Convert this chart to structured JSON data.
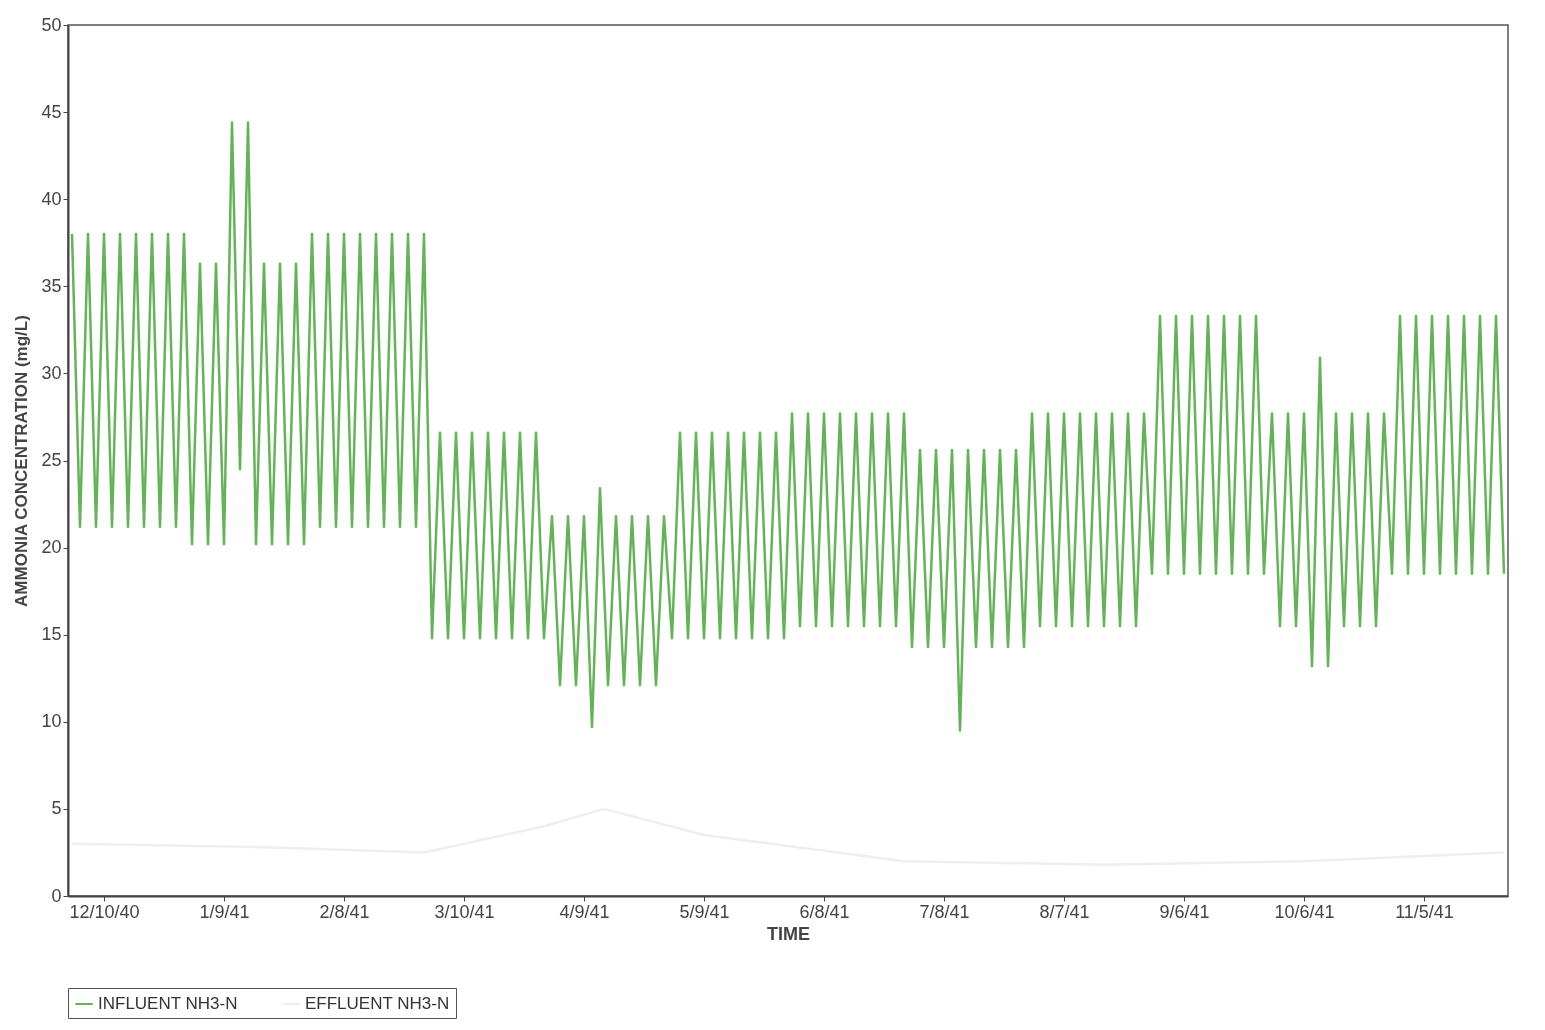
{
  "chart_data": {
    "type": "line",
    "xlabel": "TIME",
    "ylabel": "AMMONIA CONCENTRATION (mg/L)",
    "xlim": [
      "1940-12-01",
      "1941-11-26"
    ],
    "ylim": [
      0,
      50
    ],
    "xticks": [
      {
        "value": "1940-12-10",
        "label": "12/10/40"
      },
      {
        "value": "1941-01-09",
        "label": "1/9/41"
      },
      {
        "value": "1941-02-08",
        "label": "2/8/41"
      },
      {
        "value": "1941-03-10",
        "label": "3/10/41"
      },
      {
        "value": "1941-04-09",
        "label": "4/9/41"
      },
      {
        "value": "1941-05-09",
        "label": "5/9/41"
      },
      {
        "value": "1941-06-08",
        "label": "6/8/41"
      },
      {
        "value": "1941-07-08",
        "label": "7/8/41"
      },
      {
        "value": "1941-08-07",
        "label": "8/7/41"
      },
      {
        "value": "1941-09-06",
        "label": "9/6/41"
      },
      {
        "value": "1941-10-06",
        "label": "10/6/41"
      },
      {
        "value": "1941-11-05",
        "label": "11/5/41"
      }
    ],
    "yticks": [
      0,
      5,
      10,
      15,
      20,
      25,
      30,
      35,
      40,
      45,
      50
    ],
    "grid": false,
    "legend": "bottom",
    "marker": "none",
    "line_style": "solid",
    "series": [
      {
        "name": "INFLUENT NH3-N",
        "color": "#66b25a",
        "x": [
          "1940-12-02",
          "1940-12-04",
          "1940-12-06",
          "1940-12-08",
          "1940-12-10",
          "1940-12-12",
          "1940-12-14",
          "1940-12-16",
          "1940-12-18",
          "1940-12-20",
          "1940-12-22",
          "1940-12-24",
          "1940-12-26",
          "1940-12-28",
          "1940-12-30",
          "1941-01-01",
          "1941-01-03",
          "1941-01-05",
          "1941-01-07",
          "1941-01-09",
          "1941-01-11",
          "1941-01-13",
          "1941-01-15",
          "1941-01-17",
          "1941-01-19",
          "1941-01-21",
          "1941-01-23",
          "1941-01-25",
          "1941-01-27",
          "1941-01-29",
          "1941-01-31",
          "1941-02-02",
          "1941-02-04",
          "1941-02-06",
          "1941-02-08",
          "1941-02-10",
          "1941-02-12",
          "1941-02-14",
          "1941-02-16",
          "1941-02-18",
          "1941-02-20",
          "1941-02-22",
          "1941-02-24",
          "1941-02-26",
          "1941-02-28",
          "1941-03-02",
          "1941-03-04",
          "1941-03-06",
          "1941-03-08",
          "1941-03-10",
          "1941-03-12",
          "1941-03-14",
          "1941-03-16",
          "1941-03-18",
          "1941-03-20",
          "1941-03-22",
          "1941-03-24",
          "1941-03-26",
          "1941-03-28",
          "1941-03-30",
          "1941-04-01",
          "1941-04-03",
          "1941-04-05",
          "1941-04-07",
          "1941-04-09",
          "1941-04-11",
          "1941-04-13",
          "1941-04-15",
          "1941-04-17",
          "1941-04-19",
          "1941-04-21",
          "1941-04-23",
          "1941-04-25",
          "1941-04-27",
          "1941-04-29",
          "1941-05-01",
          "1941-05-03",
          "1941-05-05",
          "1941-05-07",
          "1941-05-09",
          "1941-05-11",
          "1941-05-13",
          "1941-05-15",
          "1941-05-17",
          "1941-05-19",
          "1941-05-21",
          "1941-05-23",
          "1941-05-25",
          "1941-05-27",
          "1941-05-29",
          "1941-05-31",
          "1941-06-02",
          "1941-06-04",
          "1941-06-06",
          "1941-06-08",
          "1941-06-10",
          "1941-06-12",
          "1941-06-14",
          "1941-06-16",
          "1941-06-18",
          "1941-06-20",
          "1941-06-22",
          "1941-06-24",
          "1941-06-26",
          "1941-06-28",
          "1941-06-30",
          "1941-07-02",
          "1941-07-04",
          "1941-07-06",
          "1941-07-08",
          "1941-07-10",
          "1941-07-12",
          "1941-07-14",
          "1941-07-16",
          "1941-07-18",
          "1941-07-20",
          "1941-07-22",
          "1941-07-24",
          "1941-07-26",
          "1941-07-28",
          "1941-07-30",
          "1941-08-01",
          "1941-08-03",
          "1941-08-05",
          "1941-08-07",
          "1941-08-09",
          "1941-08-11",
          "1941-08-13",
          "1941-08-15",
          "1941-08-17",
          "1941-08-19",
          "1941-08-21",
          "1941-08-23",
          "1941-08-25",
          "1941-08-27",
          "1941-08-29",
          "1941-08-31",
          "1941-09-02",
          "1941-09-04",
          "1941-09-06",
          "1941-09-08",
          "1941-09-10",
          "1941-09-12",
          "1941-09-14",
          "1941-09-16",
          "1941-09-18",
          "1941-09-20",
          "1941-09-22",
          "1941-09-24",
          "1941-09-26",
          "1941-09-28",
          "1941-09-30",
          "1941-10-02",
          "1941-10-04",
          "1941-10-06",
          "1941-10-08",
          "1941-10-10",
          "1941-10-12",
          "1941-10-14",
          "1941-10-16",
          "1941-10-18",
          "1941-10-20",
          "1941-10-22",
          "1941-10-24",
          "1941-10-26",
          "1941-10-28",
          "1941-10-30",
          "1941-11-01",
          "1941-11-03",
          "1941-11-05",
          "1941-11-07",
          "1941-11-09",
          "1941-11-11",
          "1941-11-13",
          "1941-11-15",
          "1941-11-17",
          "1941-11-19",
          "1941-11-21",
          "1941-11-23",
          "1941-11-25"
        ],
        "values": [
          38,
          21.2,
          38,
          21.2,
          38,
          21.2,
          38,
          21.2,
          38,
          21.2,
          38,
          21.2,
          38,
          21.2,
          38,
          20.2,
          36.3,
          20.2,
          36.3,
          20.2,
          44.4,
          24.5,
          44.4,
          20.2,
          36.3,
          20.2,
          36.3,
          20.2,
          36.3,
          20.2,
          38,
          21.2,
          38,
          21.2,
          38,
          21.2,
          38,
          21.2,
          38,
          21.2,
          38,
          21.2,
          38,
          21.2,
          38,
          14.8,
          26.6,
          14.8,
          26.6,
          14.8,
          26.6,
          14.8,
          26.6,
          14.8,
          26.6,
          14.8,
          26.6,
          14.8,
          26.6,
          14.8,
          21.8,
          12.1,
          21.8,
          12.1,
          21.8,
          9.7,
          23.4,
          12.1,
          21.8,
          12.1,
          21.8,
          12.1,
          21.8,
          12.1,
          21.8,
          14.8,
          26.6,
          14.8,
          26.6,
          14.8,
          26.6,
          14.8,
          26.6,
          14.8,
          26.6,
          14.8,
          26.6,
          14.8,
          26.6,
          14.8,
          27.7,
          15.5,
          27.7,
          15.5,
          27.7,
          15.5,
          27.7,
          15.5,
          27.7,
          15.5,
          27.7,
          15.5,
          27.7,
          15.5,
          27.7,
          14.3,
          25.6,
          14.3,
          25.6,
          14.3,
          25.6,
          9.5,
          25.6,
          14.3,
          25.6,
          14.3,
          25.6,
          14.3,
          25.6,
          14.3,
          27.7,
          15.5,
          27.7,
          15.5,
          27.7,
          15.5,
          27.7,
          15.5,
          27.7,
          15.5,
          27.7,
          15.5,
          27.7,
          15.5,
          27.7,
          18.5,
          33.3,
          18.5,
          33.3,
          18.5,
          33.3,
          18.5,
          33.3,
          18.5,
          33.3,
          18.5,
          33.3,
          18.5,
          33.3,
          18.5,
          27.7,
          15.5,
          27.7,
          15.5,
          27.7,
          13.2,
          30.9,
          13.2,
          27.7,
          15.5,
          27.7,
          15.5,
          27.7,
          15.5,
          27.7,
          18.5,
          33.3,
          18.5,
          33.3,
          18.5,
          33.3,
          18.5,
          33.3,
          18.5,
          33.3,
          18.5,
          33.3,
          18.5,
          33.3,
          18.5
        ]
      },
      {
        "name": "EFFLUENT NH3-N",
        "color": "#f0eded",
        "x": [
          "1940-12-02",
          "1941-01-19",
          "1941-02-28",
          "1941-03-30",
          "1941-04-14",
          "1941-05-09",
          "1941-06-28",
          "1941-08-17",
          "1941-10-06",
          "1941-11-25"
        ],
        "values": [
          3,
          2.8,
          2.5,
          4,
          5,
          3.5,
          2,
          1.8,
          2,
          2.5
        ]
      }
    ]
  }
}
